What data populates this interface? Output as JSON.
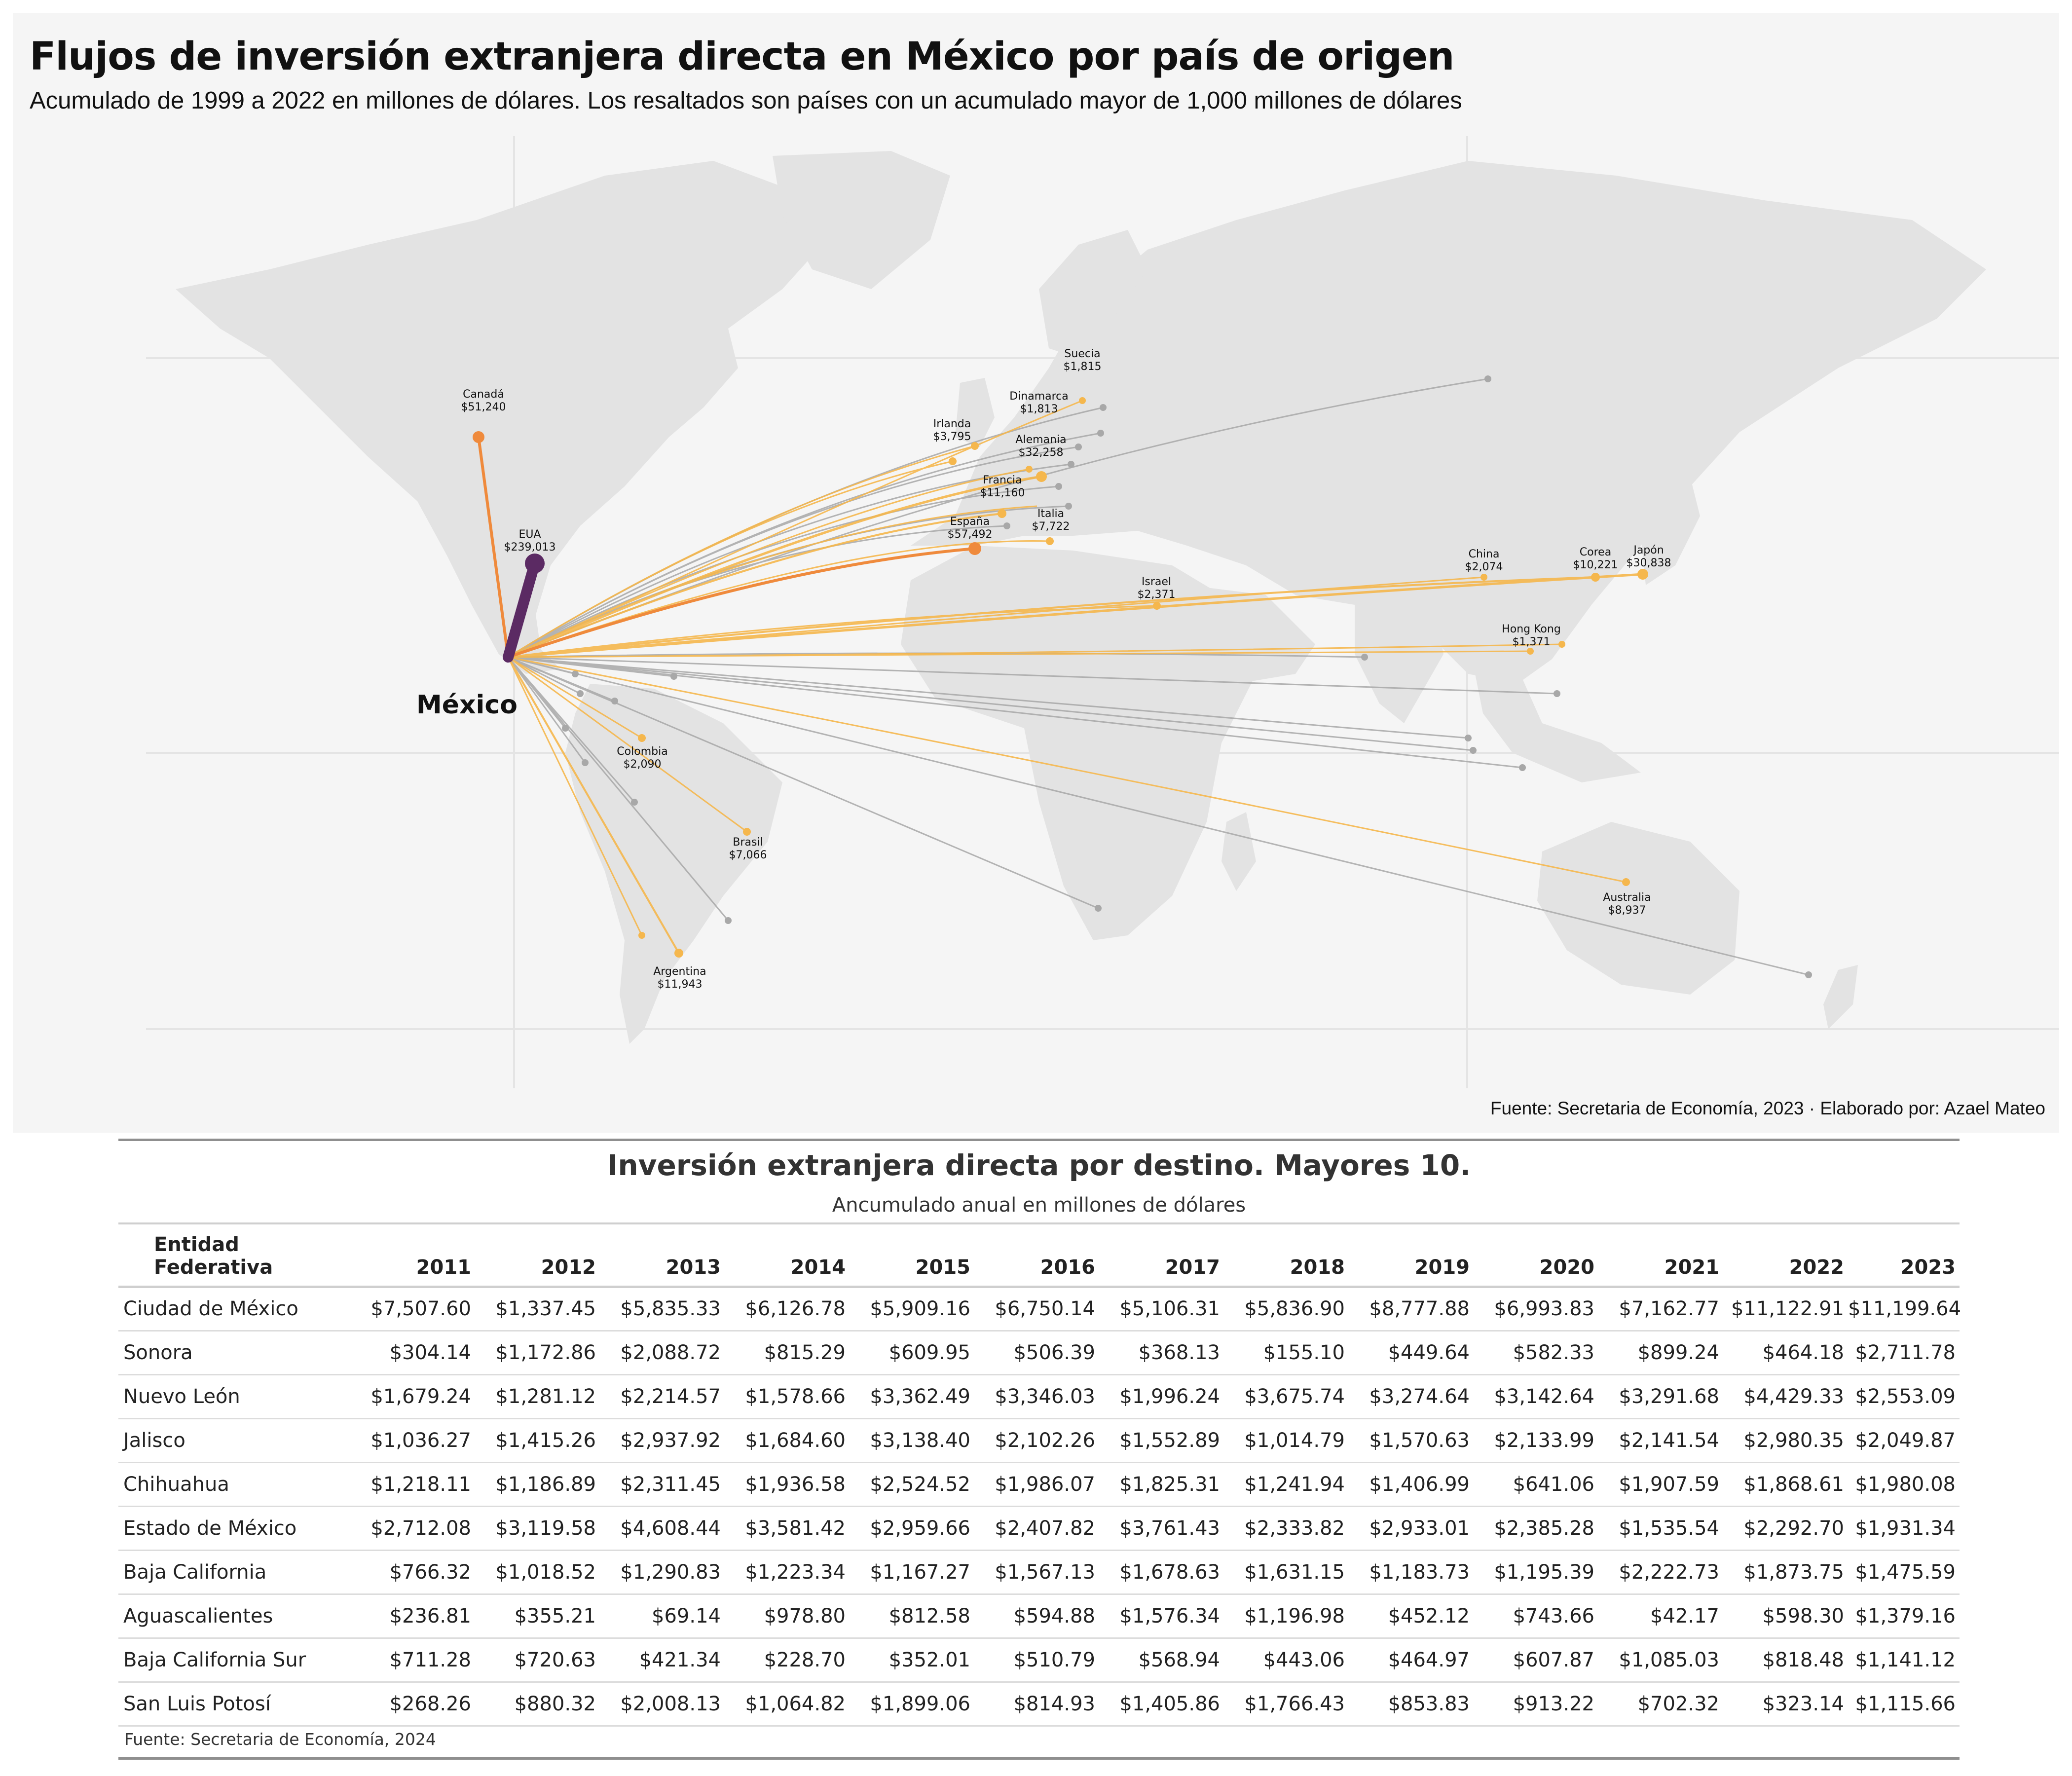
{
  "map": {
    "title": "Flujos de inversión extranjera directa en México por país de origen",
    "subtitle": "Acumulado de 1999 a 2022 en millones de dólares. Los resaltados son países con un acumulado mayor de 1,000 millones de dólares",
    "origin_label": "México",
    "source": "Fuente: Secretaria de Economía, 2023 · Elaborado por: Azael Mateo",
    "colors": {
      "background": "#f5f5f5",
      "land": "#e3e3e3",
      "top_flow": "#5b2a63",
      "high_flow": "#ef8a3c",
      "highlight_flow": "#f5b74d",
      "other_flow": "#a8a8a8"
    },
    "flows": [
      {
        "name": "EUA",
        "value": "$239,013",
        "level": "top"
      },
      {
        "name": "España",
        "value": "$57,492",
        "level": "high"
      },
      {
        "name": "Canadá",
        "value": "$51,240",
        "level": "high"
      },
      {
        "name": "Alemania",
        "value": "$32,258",
        "level": "highlight"
      },
      {
        "name": "Japón",
        "value": "$30,838",
        "level": "highlight"
      },
      {
        "name": "Argentina",
        "value": "$11,943",
        "level": "highlight"
      },
      {
        "name": "Francia",
        "value": "$11,160",
        "level": "highlight"
      },
      {
        "name": "Corea",
        "value": "$10,221",
        "level": "highlight"
      },
      {
        "name": "Australia",
        "value": "$8,937",
        "level": "highlight"
      },
      {
        "name": "Italia",
        "value": "$7,722",
        "level": "highlight"
      },
      {
        "name": "Brasil",
        "value": "$7,066",
        "level": "highlight"
      },
      {
        "name": "Irlanda",
        "value": "$3,795",
        "level": "highlight"
      },
      {
        "name": "Israel",
        "value": "$2,371",
        "level": "highlight"
      },
      {
        "name": "Colombia",
        "value": "$2,090",
        "level": "highlight"
      },
      {
        "name": "China",
        "value": "$2,074",
        "level": "highlight"
      },
      {
        "name": "Suecia",
        "value": "$1,815",
        "level": "highlight"
      },
      {
        "name": "Dinamarca",
        "value": "$1,813",
        "level": "highlight"
      },
      {
        "name": "Hong Kong",
        "value": "$1,371",
        "level": "highlight"
      }
    ]
  },
  "table": {
    "title": "Inversión extranjera directa por destino. Mayores 10.",
    "subtitle": "Ancumulado anual en millones de dólares",
    "entity_header_line1": "Entidad",
    "entity_header_line2": "Federativa",
    "years": [
      "2011",
      "2012",
      "2013",
      "2014",
      "2015",
      "2016",
      "2017",
      "2018",
      "2019",
      "2020",
      "2021",
      "2022",
      "2023"
    ],
    "rows": [
      {
        "entity": "Ciudad de México",
        "values": [
          "$7,507.60",
          "$1,337.45",
          "$5,835.33",
          "$6,126.78",
          "$5,909.16",
          "$6,750.14",
          "$5,106.31",
          "$5,836.90",
          "$8,777.88",
          "$6,993.83",
          "$7,162.77",
          "$11,122.91",
          "$11,199.64"
        ]
      },
      {
        "entity": "Sonora",
        "values": [
          "$304.14",
          "$1,172.86",
          "$2,088.72",
          "$815.29",
          "$609.95",
          "$506.39",
          "$368.13",
          "$155.10",
          "$449.64",
          "$582.33",
          "$899.24",
          "$464.18",
          "$2,711.78"
        ]
      },
      {
        "entity": "Nuevo León",
        "values": [
          "$1,679.24",
          "$1,281.12",
          "$2,214.57",
          "$1,578.66",
          "$3,362.49",
          "$3,346.03",
          "$1,996.24",
          "$3,675.74",
          "$3,274.64",
          "$3,142.64",
          "$3,291.68",
          "$4,429.33",
          "$2,553.09"
        ]
      },
      {
        "entity": "Jalisco",
        "values": [
          "$1,036.27",
          "$1,415.26",
          "$2,937.92",
          "$1,684.60",
          "$3,138.40",
          "$2,102.26",
          "$1,552.89",
          "$1,014.79",
          "$1,570.63",
          "$2,133.99",
          "$2,141.54",
          "$2,980.35",
          "$2,049.87"
        ]
      },
      {
        "entity": "Chihuahua",
        "values": [
          "$1,218.11",
          "$1,186.89",
          "$2,311.45",
          "$1,936.58",
          "$2,524.52",
          "$1,986.07",
          "$1,825.31",
          "$1,241.94",
          "$1,406.99",
          "$641.06",
          "$1,907.59",
          "$1,868.61",
          "$1,980.08"
        ]
      },
      {
        "entity": "Estado de México",
        "values": [
          "$2,712.08",
          "$3,119.58",
          "$4,608.44",
          "$3,581.42",
          "$2,959.66",
          "$2,407.82",
          "$3,761.43",
          "$2,333.82",
          "$2,933.01",
          "$2,385.28",
          "$1,535.54",
          "$2,292.70",
          "$1,931.34"
        ]
      },
      {
        "entity": "Baja California",
        "values": [
          "$766.32",
          "$1,018.52",
          "$1,290.83",
          "$1,223.34",
          "$1,167.27",
          "$1,567.13",
          "$1,678.63",
          "$1,631.15",
          "$1,183.73",
          "$1,195.39",
          "$2,222.73",
          "$1,873.75",
          "$1,475.59"
        ]
      },
      {
        "entity": "Aguascalientes",
        "values": [
          "$236.81",
          "$355.21",
          "$69.14",
          "$978.80",
          "$812.58",
          "$594.88",
          "$1,576.34",
          "$1,196.98",
          "$452.12",
          "$743.66",
          "$42.17",
          "$598.30",
          "$1,379.16"
        ]
      },
      {
        "entity": "Baja California Sur",
        "values": [
          "$711.28",
          "$720.63",
          "$421.34",
          "$228.70",
          "$352.01",
          "$510.79",
          "$568.94",
          "$443.06",
          "$464.97",
          "$607.87",
          "$1,085.03",
          "$818.48",
          "$1,141.12"
        ]
      },
      {
        "entity": "San Luis Potosí",
        "values": [
          "$268.26",
          "$880.32",
          "$2,008.13",
          "$1,064.82",
          "$1,899.06",
          "$814.93",
          "$1,405.86",
          "$1,766.43",
          "$853.83",
          "$913.22",
          "$702.32",
          "$323.14",
          "$1,115.66"
        ]
      }
    ],
    "source": "Fuente: Secretaria de Economía, 2024"
  }
}
